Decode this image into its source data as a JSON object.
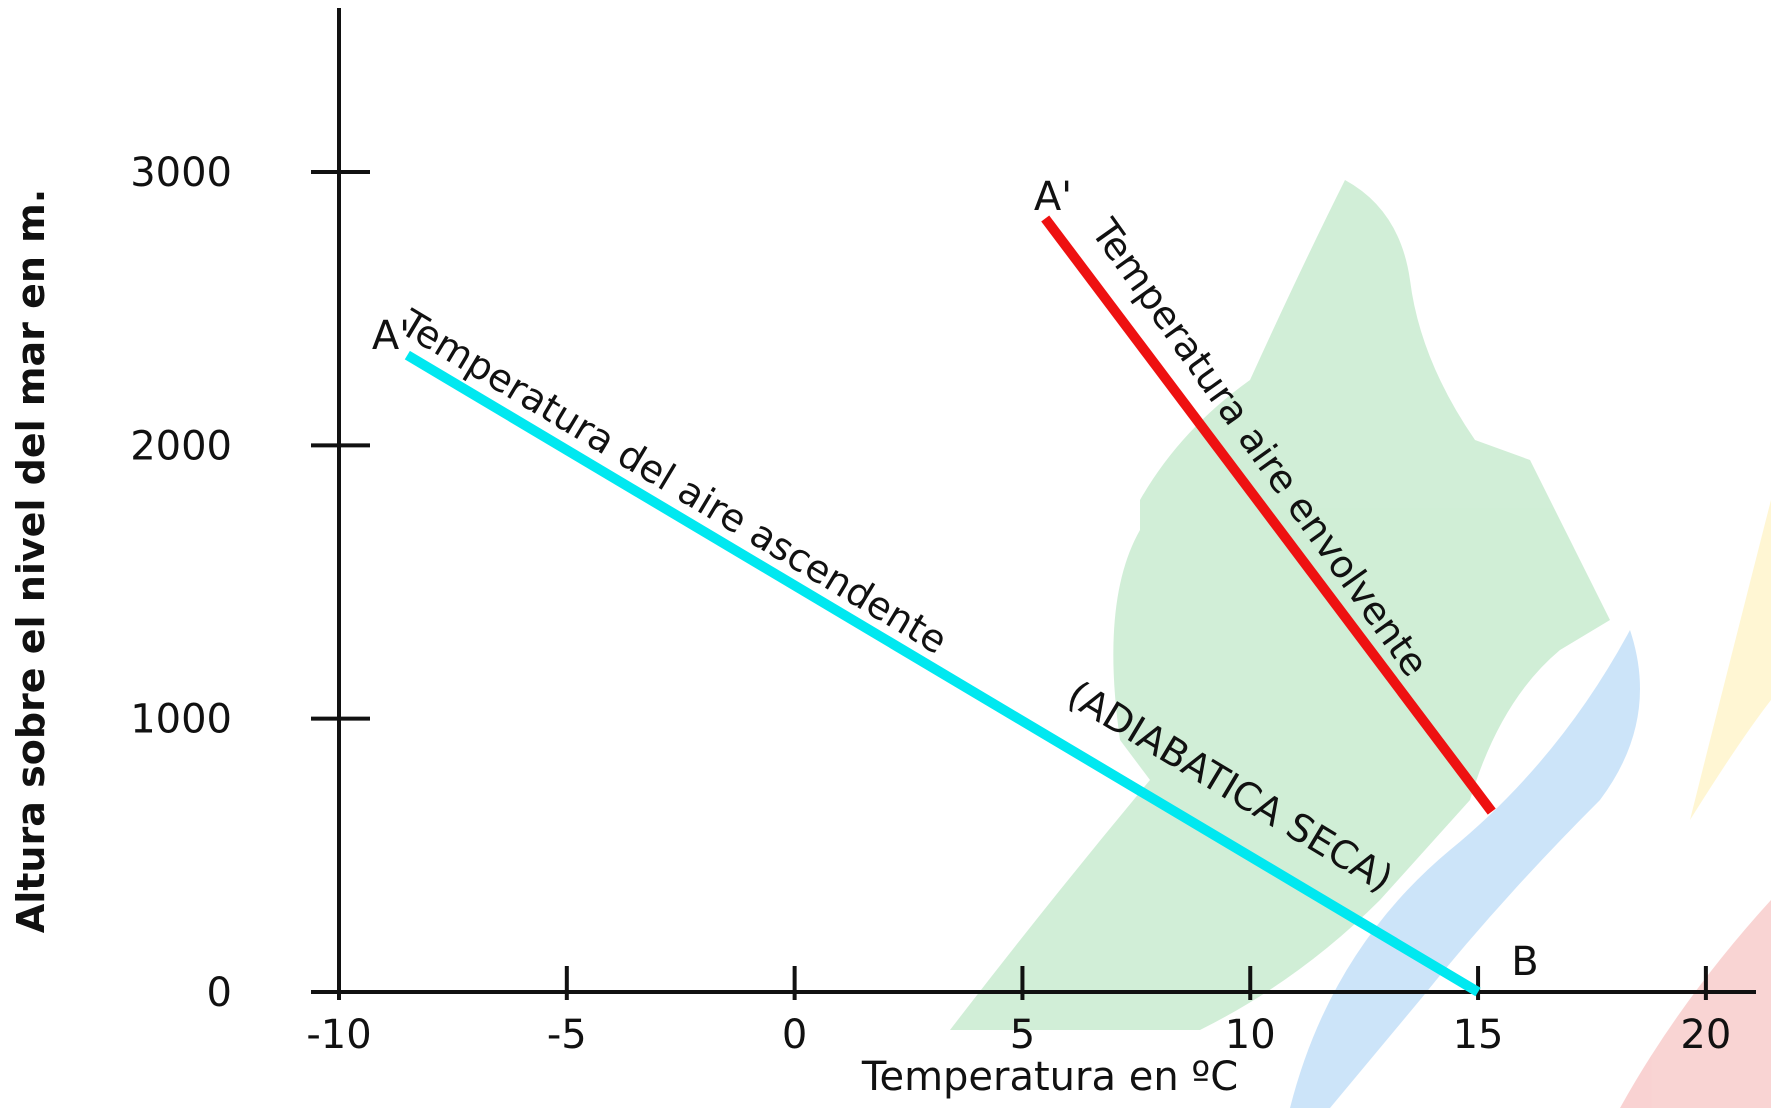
{
  "chart_data": {
    "type": "line",
    "x_label": "Temperatura en ºC",
    "y_label": "Altura sobre el nivel del mar en m.",
    "xlim": [
      -10,
      21.1
    ],
    "ylim": [
      0,
      3600
    ],
    "xticks": [
      -10,
      -5,
      0,
      5,
      10,
      15,
      20
    ],
    "yticks": [
      0,
      1000,
      2000,
      3000
    ],
    "series": [
      {
        "name": "Temperatura del aire ascendente",
        "color": "#00e8f0",
        "x": [
          -8.5,
          15
        ],
        "values": [
          2330,
          0
        ]
      },
      {
        "name": "Temperatura aire envolvente",
        "color": "#ee1111",
        "x": [
          5.5,
          15.3
        ],
        "values": [
          2830,
          660
        ]
      }
    ],
    "annotations": [
      "(ADIABATICA SECA)"
    ],
    "point_labels": [
      "A'",
      "A'",
      "B"
    ]
  }
}
